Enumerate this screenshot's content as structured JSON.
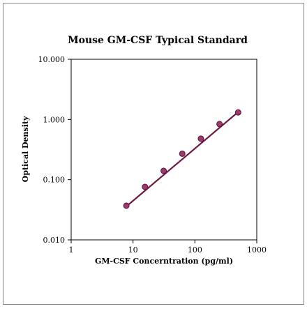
{
  "chart_data": {
    "type": "scatter",
    "title": "Mouse GM-CSF Typical Standard",
    "xlabel": "GM-CSF Concerntration (pg/ml)",
    "ylabel": "Optical Density",
    "x_scale": "log",
    "y_scale": "log",
    "xlim": [
      1,
      1000
    ],
    "ylim": [
      0.01,
      10
    ],
    "x_ticks": [
      1,
      10,
      100,
      1000
    ],
    "x_tick_labels": [
      "1",
      "10",
      "100",
      "1000"
    ],
    "y_ticks": [
      0.01,
      0.1,
      1,
      10
    ],
    "y_tick_labels": [
      "0.010",
      "0.100",
      "1.000",
      "10.000"
    ],
    "grid": false,
    "legend": "none",
    "series": [
      {
        "x": [
          7.8,
          15.6,
          31.25,
          62.5,
          125,
          250,
          500
        ],
        "y": [
          0.037,
          0.076,
          0.14,
          0.27,
          0.48,
          0.84,
          1.31
        ]
      }
    ],
    "trendline": {
      "x": [
        7.8,
        500
      ],
      "y": [
        0.036,
        1.33
      ]
    },
    "colors": {
      "marker_fill": "#9b3a6c",
      "marker_edge": "#5a1238",
      "line": "#6b1c47",
      "frame": "#888888"
    }
  }
}
